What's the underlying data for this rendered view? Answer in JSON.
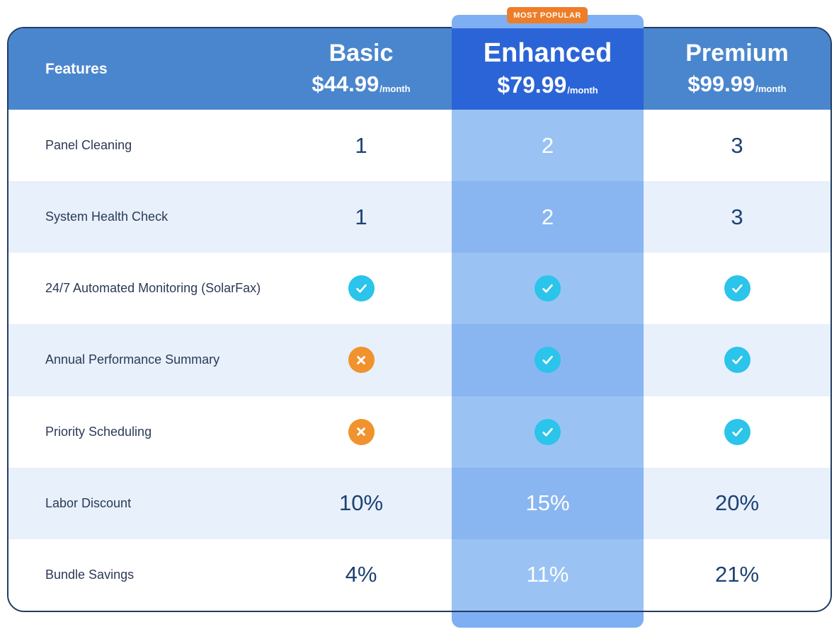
{
  "badge": {
    "label": "MOST POPULAR"
  },
  "header": {
    "features_label": "Features"
  },
  "plans": [
    {
      "name": "Basic",
      "price": "$44.99",
      "period": "/month",
      "highlighted": false
    },
    {
      "name": "Enhanced",
      "price": "$79.99",
      "period": "/month",
      "highlighted": true
    },
    {
      "name": "Premium",
      "price": "$99.99",
      "period": "/month",
      "highlighted": false
    }
  ],
  "table": {
    "rows": [
      {
        "label": "Panel Cleaning",
        "values": [
          "1",
          "2",
          "3"
        ]
      },
      {
        "label": "System Health Check",
        "values": [
          "1",
          "2",
          "3"
        ]
      },
      {
        "label": "24/7 Automated Monitoring (SolarFax)",
        "values": [
          "check",
          "check",
          "check"
        ]
      },
      {
        "label": "Annual Performance Summary",
        "values": [
          "cross",
          "check",
          "check"
        ]
      },
      {
        "label": "Priority Scheduling",
        "values": [
          "cross",
          "check",
          "check"
        ]
      },
      {
        "label": "Labor Discount",
        "values": [
          "10%",
          "15%",
          "20%"
        ]
      },
      {
        "label": "Bundle Savings",
        "values": [
          "4%",
          "11%",
          "21%"
        ]
      }
    ]
  },
  "colors": {
    "header_blue": "#4a86ce",
    "enhanced_header_blue": "#2b64d6",
    "enhanced_column_light": "#9ac3f4",
    "enhanced_column_dark": "#89b6f1",
    "column_cap_blue": "#7eaff2",
    "alt_row_blue": "#e7f0fb",
    "check_cyan": "#2bc4ea",
    "cross_orange": "#f0932e",
    "badge_orange": "#ee7d28",
    "text_navy": "#1d4174",
    "label_navy": "#2b3a55",
    "border_navy": "#223c63"
  }
}
